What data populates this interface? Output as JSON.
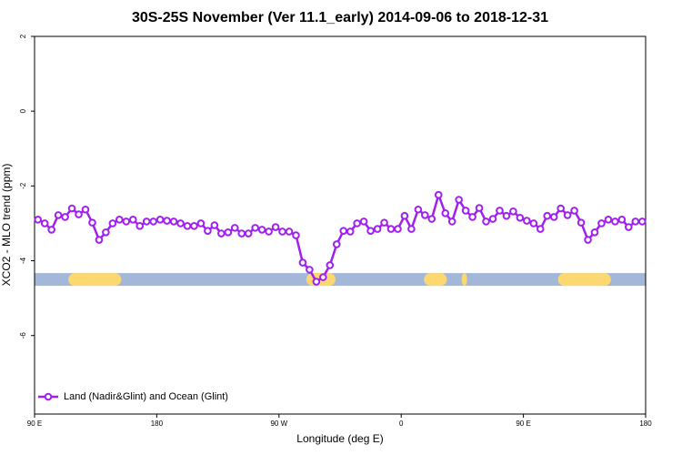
{
  "chart_data": {
    "type": "line",
    "title": "30S-25S November (Ver 11.1_early)   2014-09-06 to 2018-12-31",
    "x_label": "Longitude (deg E)",
    "y_label": "XCO2 - MLO trend (ppm)",
    "xlim": [
      90,
      540
    ],
    "ylim": [
      -8.1,
      2
    ],
    "xticks": [
      {
        "value": 90,
        "label": "90 E"
      },
      180,
      {
        "value": 270,
        "label": "90 W"
      },
      {
        "value": 360,
        "label": "0"
      },
      {
        "value": 450,
        "label": "90 E"
      },
      {
        "value": 540,
        "label": "180"
      }
    ],
    "yticks": [
      2,
      0,
      -2,
      -4,
      -6
    ],
    "grid": false,
    "legend_position": "bottom-left",
    "surface_band": {
      "value": -4.5,
      "color": "#a3b8d8",
      "land_color": "#fdd870",
      "land_ranges": [
        [
          114.9,
          153.8
        ],
        [
          290.1,
          311.6
        ],
        [
          376.8,
          393.6
        ],
        [
          404.5,
          408.5
        ],
        [
          475.5,
          514.4
        ]
      ]
    },
    "x": [
      92.5,
      97.5,
      102.5,
      107.5,
      112.5,
      117.5,
      122.5,
      127.5,
      132.5,
      137.5,
      142.5,
      147.5,
      152.5,
      157.5,
      162.5,
      167.5,
      172.5,
      177.5,
      182.5,
      187.5,
      192.5,
      197.5,
      202.5,
      207.5,
      212.5,
      217.5,
      222.5,
      227.5,
      232.5,
      237.5,
      242.5,
      247.5,
      252.5,
      257.5,
      262.5,
      267.5,
      272.5,
      277.5,
      282.5,
      287.5,
      292.5,
      297.5,
      302.5,
      307.5,
      312.5,
      317.5,
      322.5,
      327.5,
      332.5,
      337.5,
      342.5,
      347.5,
      352.5,
      357.5,
      362.5,
      367.5,
      372.5,
      377.5,
      382.5,
      387.5,
      392.5,
      397.5,
      402.5,
      407.5,
      412.5,
      417.5,
      422.5,
      427.5,
      432.5,
      437.5,
      442.5,
      447.5,
      452.5,
      457.5,
      462.5,
      467.5,
      472.5,
      477.5,
      482.5,
      487.5,
      492.5,
      497.5,
      502.5,
      507.5,
      512.5,
      517.5,
      522.5,
      527.5,
      532.5,
      537.5
    ],
    "series": [
      {
        "name": "Land (Nadir&Glint) and Ocean (Glint)",
        "color": "#a020f0",
        "values": [
          -2.9,
          -3.0,
          -3.17,
          -2.78,
          -2.83,
          -2.6,
          -2.76,
          -2.63,
          -2.98,
          -3.44,
          -3.24,
          -3.0,
          -2.9,
          -2.95,
          -2.9,
          -3.07,
          -2.95,
          -2.95,
          -2.9,
          -2.93,
          -2.95,
          -3.0,
          -3.07,
          -3.07,
          -3.0,
          -3.2,
          -3.05,
          -3.27,
          -3.24,
          -3.12,
          -3.27,
          -3.27,
          -3.12,
          -3.17,
          -3.22,
          -3.1,
          -3.22,
          -3.22,
          -3.32,
          -4.05,
          -4.24,
          -4.56,
          -4.44,
          -4.12,
          -3.56,
          -3.2,
          -3.22,
          -3.0,
          -2.95,
          -3.2,
          -3.15,
          -2.98,
          -3.15,
          -3.15,
          -2.8,
          -3.15,
          -2.63,
          -2.78,
          -2.88,
          -2.24,
          -2.73,
          -2.95,
          -2.37,
          -2.66,
          -2.83,
          -2.59,
          -2.95,
          -2.88,
          -2.66,
          -2.8,
          -2.68,
          -2.85,
          -2.93,
          -3.0,
          -3.15,
          -2.8,
          -2.83,
          -2.6,
          -2.78,
          -2.66,
          -2.98,
          -3.44,
          -3.24,
          -3.0,
          -2.9,
          -2.95,
          -2.9,
          -3.1,
          -2.95,
          -2.95
        ]
      }
    ]
  }
}
